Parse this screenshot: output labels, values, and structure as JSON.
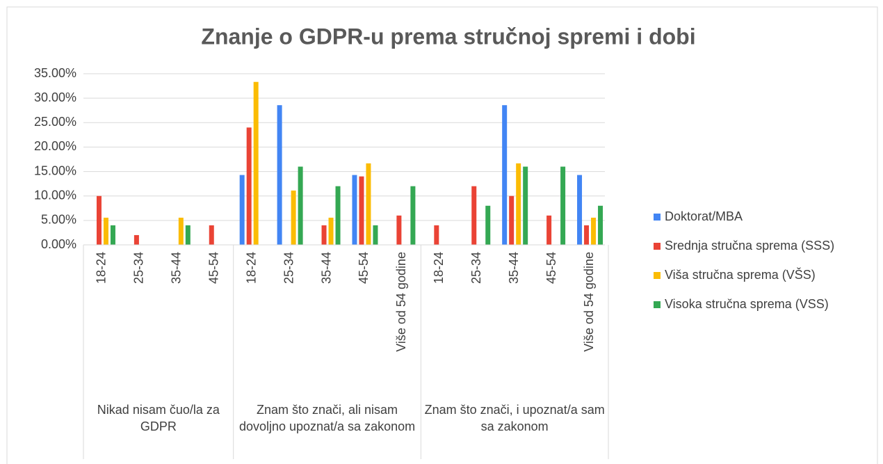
{
  "chart_data": {
    "type": "grouped-bar",
    "title": "Znanje o GDPR-u prema stručnoj spremi i dobi",
    "groups": [
      {
        "name": "Nikad nisam čuo/la za GDPR",
        "categories": [
          "18-24",
          "25-34",
          "35-44",
          "45-54"
        ]
      },
      {
        "name": "Znam što znači, ali nisam dovoljno upoznat/a sa zakonom",
        "categories": [
          "18-24",
          "25-34",
          "35-44",
          "45-54",
          "Više od 54 godine"
        ]
      },
      {
        "name": "Znam što znači, i upoznat/a sam sa zakonom",
        "categories": [
          "18-24",
          "25-34",
          "35-44",
          "45-54",
          "Više od 54 godine"
        ]
      }
    ],
    "series": [
      {
        "name": "Doktorat/MBA",
        "color": "#4285f4",
        "values": [
          0,
          0,
          0,
          0,
          14.29,
          28.57,
          0,
          14.29,
          0,
          0,
          0,
          28.57,
          0,
          14.29
        ]
      },
      {
        "name": "Srednja stručna sprema (SSS)",
        "color": "#ea4335",
        "values": [
          10,
          2,
          0,
          4,
          24,
          0,
          4,
          14,
          6,
          4,
          12,
          10,
          6,
          4
        ]
      },
      {
        "name": "Viša stručna sprema (VŠS)",
        "color": "#fbbc04",
        "values": [
          5.56,
          0,
          5.56,
          0,
          33.33,
          11.11,
          5.56,
          16.67,
          0,
          0,
          0,
          16.67,
          0,
          5.56
        ]
      },
      {
        "name": "Visoka stručna sprema (VSS)",
        "color": "#34a853",
        "values": [
          4,
          0,
          4,
          0,
          0,
          16,
          12,
          4,
          12,
          0,
          8,
          16,
          16,
          8
        ]
      }
    ],
    "ylim": [
      0,
      35
    ],
    "yticks": [
      {
        "value": 0,
        "label": "0.00%"
      },
      {
        "value": 5,
        "label": "5.00%"
      },
      {
        "value": 10,
        "label": "10.00%"
      },
      {
        "value": 15,
        "label": "15.00%"
      },
      {
        "value": 20,
        "label": "20.00%"
      },
      {
        "value": 25,
        "label": "25.00%"
      },
      {
        "value": 30,
        "label": "30.00%"
      },
      {
        "value": 35,
        "label": "35.00%"
      }
    ],
    "grid": true,
    "legend": "right"
  }
}
